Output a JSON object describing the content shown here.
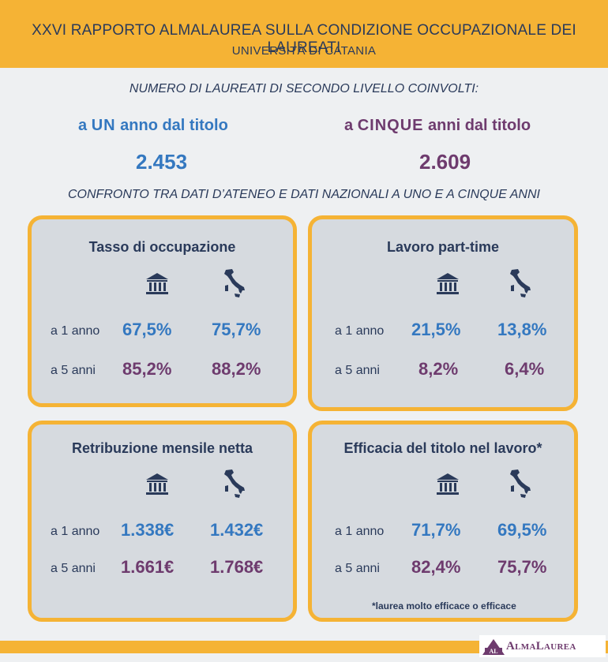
{
  "header": {
    "title": "XXVI RAPPORTO ALMALAUREA SULLA CONDIZIONE OCCUPAZIONALE DEI LAUREATI",
    "subtitle": "UNIVERSITÀ DI CATANIA"
  },
  "intro": "NUMERO DI LAUREATI DI SECONDO LIVELLO COINVOLTI:",
  "one_year": {
    "pre": "a ",
    "emph": "UN",
    "post": " anno dal titolo",
    "value": "2.453"
  },
  "five_year": {
    "pre": "a ",
    "emph": "CINQUE",
    "post": " anni dal titolo",
    "value": "2.609"
  },
  "compare": "CONFRONTO TRA DATI D’ATENEO E DATI NAZIONALI A UNO E A CINQUE ANNI",
  "row_labels": {
    "one": "a 1 anno",
    "five": "a 5 anni"
  },
  "colors": {
    "accent": "#f5b335",
    "blue": "#3478c0",
    "purple": "#6e3b6e",
    "card": "#d6dadf",
    "text": "#2a3a5a"
  },
  "icons": {
    "ateneo": "university-building-icon",
    "italia": "italy-map-icon"
  },
  "cards": [
    {
      "title": "Tasso di occupazione",
      "ateneo_1": "67,5%",
      "italia_1": "75,7%",
      "ateneo_5": "85,2%",
      "italia_5": "88,2%"
    },
    {
      "title": "Lavoro part-time",
      "ateneo_1": "21,5%",
      "italia_1": "13,8%",
      "ateneo_5": "8,2%",
      "italia_5": "6,4%"
    },
    {
      "title": "Retribuzione mensile netta",
      "ateneo_1": "1.338€",
      "italia_1": "1.432€",
      "ateneo_5": "1.661€",
      "italia_5": "1.768€"
    },
    {
      "title": "Efficacia del titolo nel lavoro*",
      "ateneo_1": "71,7%",
      "italia_1": "69,5%",
      "ateneo_5": "82,4%",
      "italia_5": "75,7%",
      "note": "*laurea molto efficace o efficace"
    }
  ],
  "footer": {
    "logo_badge": "AL",
    "logo_text": "AlmaLaurea"
  }
}
